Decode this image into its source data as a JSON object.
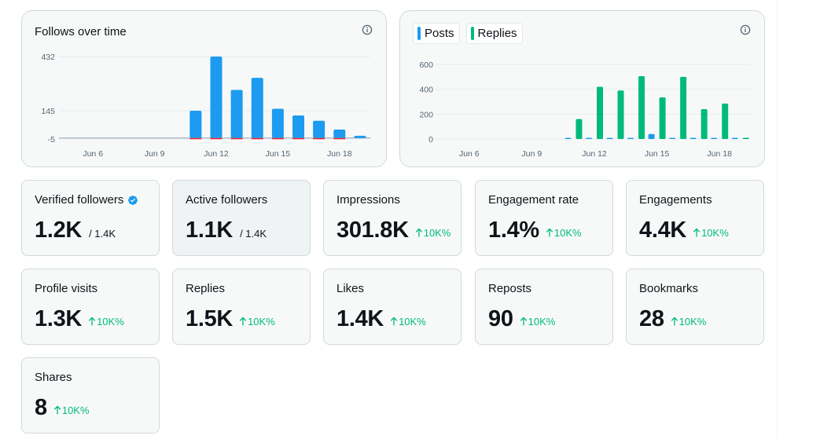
{
  "follows_chart": {
    "title": "Follows over time",
    "info_icon": "info-icon",
    "chart_data": {
      "type": "bar",
      "categories": [
        "Jun 5",
        "Jun 6",
        "Jun 7",
        "Jun 8",
        "Jun 9",
        "Jun 10",
        "Jun 11",
        "Jun 12",
        "Jun 13",
        "Jun 14",
        "Jun 15",
        "Jun 16",
        "Jun 17",
        "Jun 18",
        "Jun 19"
      ],
      "series": [
        {
          "values": [
            0,
            0,
            0,
            0,
            0,
            0,
            145,
            432,
            255,
            319,
            155,
            120,
            92,
            45,
            12
          ],
          "color": "#1d9bf0"
        },
        {
          "values": [
            0,
            0,
            0,
            0,
            0,
            0,
            -2,
            -3,
            -2,
            -3,
            -2,
            -3,
            -3,
            -2,
            0
          ],
          "color": "#f4212e"
        }
      ],
      "y_ticks": [
        "432",
        "145",
        "-5"
      ],
      "y_tick_values": [
        432,
        145,
        -5
      ],
      "x_ticks": [
        "Jun 6",
        "Jun 9",
        "Jun 12",
        "Jun 15",
        "Jun 18"
      ],
      "x_tick_index": [
        1,
        4,
        7,
        10,
        13
      ],
      "ylim": [
        -5,
        432
      ]
    }
  },
  "posts_chart": {
    "legend": [
      {
        "label": "Posts",
        "color": "#1d9bf0"
      },
      {
        "label": "Replies",
        "color": "#00ba7c"
      }
    ],
    "info_icon": "info-icon",
    "chart_data": {
      "type": "bar",
      "categories": [
        "Jun 5",
        "Jun 6",
        "Jun 7",
        "Jun 8",
        "Jun 9",
        "Jun 10",
        "Jun 11",
        "Jun 12",
        "Jun 13",
        "Jun 14",
        "Jun 15",
        "Jun 16",
        "Jun 17",
        "Jun 18",
        "Jun 19"
      ],
      "series": [
        {
          "name": "Posts",
          "values": [
            0,
            0,
            0,
            0,
            0,
            0,
            0,
            0,
            0,
            0,
            40,
            0,
            0,
            0,
            0
          ],
          "color": "#1d9bf0"
        },
        {
          "name": "Replies",
          "values": [
            0,
            0,
            0,
            0,
            0,
            0,
            160,
            420,
            390,
            505,
            335,
            500,
            240,
            285,
            10
          ],
          "color": "#00ba7c"
        }
      ],
      "y_ticks": [
        "600",
        "400",
        "200",
        "0"
      ],
      "y_tick_values": [
        600,
        400,
        200,
        0
      ],
      "x_ticks": [
        "Jun 6",
        "Jun 9",
        "Jun 12",
        "Jun 15",
        "Jun 18"
      ],
      "x_tick_index": [
        1,
        4,
        7,
        10,
        13
      ],
      "ylim": [
        0,
        600
      ]
    }
  },
  "stats": [
    {
      "label": "Verified followers",
      "value": "1.2K",
      "total": "/ 1.4K",
      "verified": true
    },
    {
      "label": "Active followers",
      "value": "1.1K",
      "total": "/ 1.4K"
    },
    {
      "label": "Impressions",
      "value": "301.8K",
      "change": "10K%"
    },
    {
      "label": "Engagement rate",
      "value": "1.4%",
      "change": "10K%"
    },
    {
      "label": "Engagements",
      "value": "4.4K",
      "change": "10K%"
    },
    {
      "label": "Profile visits",
      "value": "1.3K",
      "change": "10K%"
    },
    {
      "label": "Replies",
      "value": "1.5K",
      "change": "10K%"
    },
    {
      "label": "Likes",
      "value": "1.4K",
      "change": "10K%"
    },
    {
      "label": "Reposts",
      "value": "90",
      "change": "10K%"
    },
    {
      "label": "Bookmarks",
      "value": "28",
      "change": "10K%"
    },
    {
      "label": "Shares",
      "value": "8",
      "change": "10K%"
    }
  ]
}
